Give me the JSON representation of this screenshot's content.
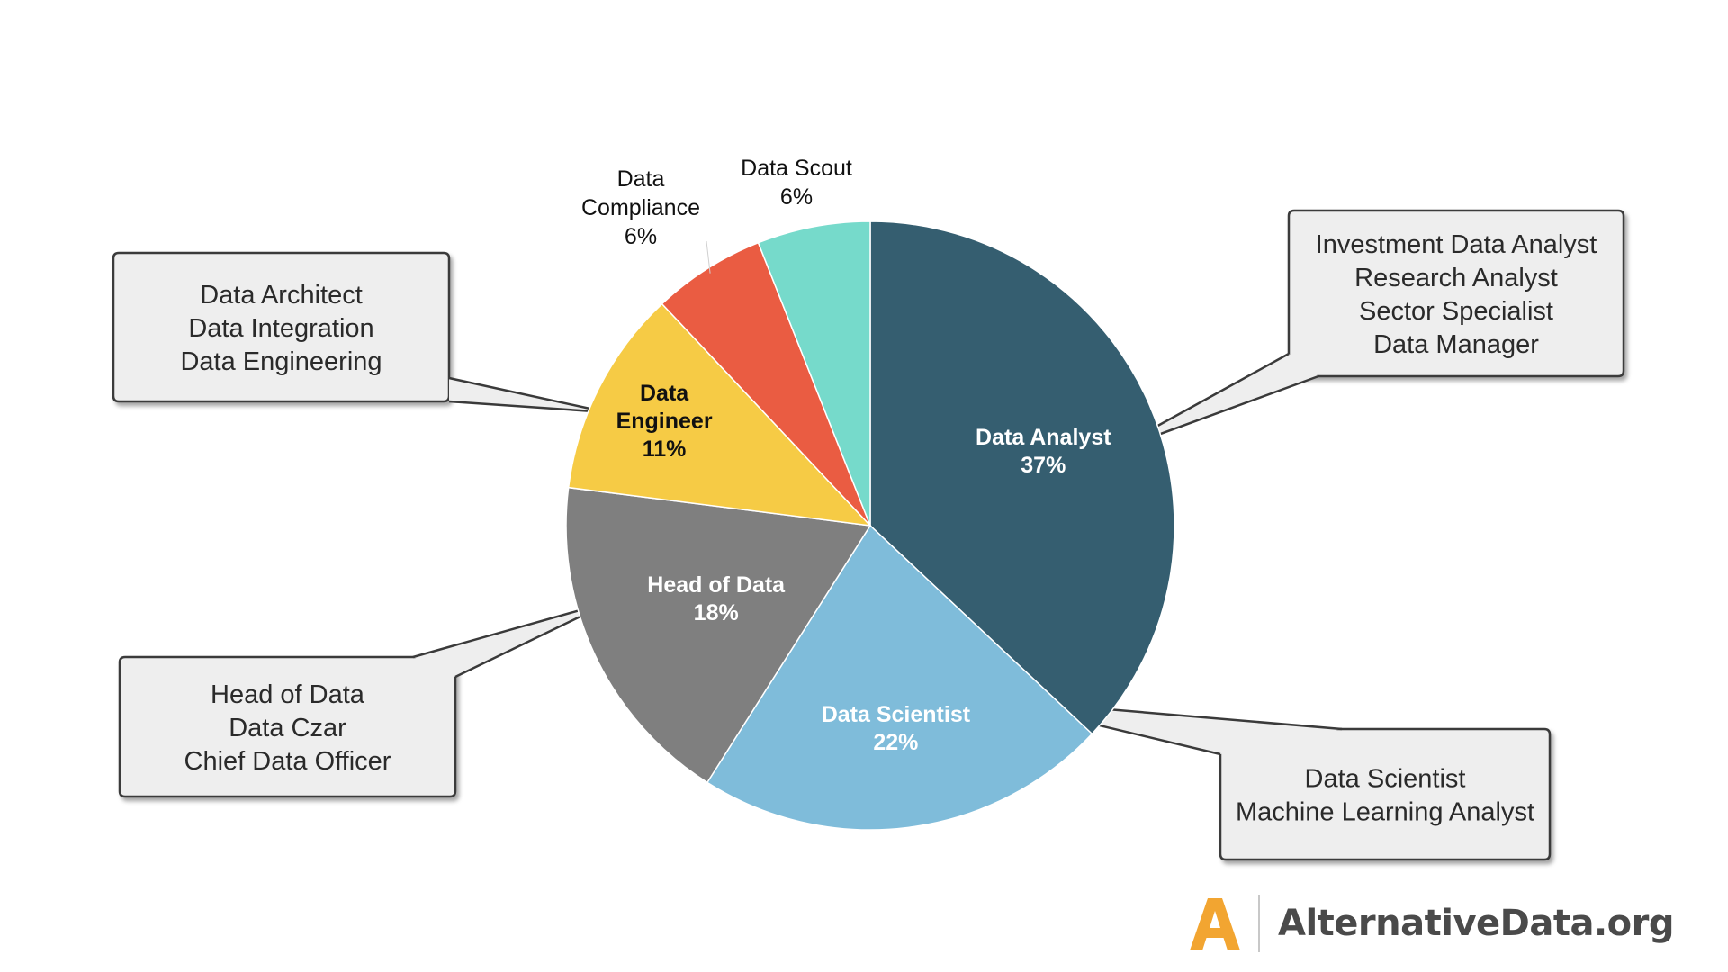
{
  "chart_data": {
    "type": "pie",
    "title": "",
    "slices": [
      {
        "label": "Data Analyst",
        "value": 37,
        "value_label": "37%",
        "color": "#355e70",
        "label_color": "#ffffff",
        "bold": true
      },
      {
        "label": "Data Scientist",
        "value": 22,
        "value_label": "22%",
        "color": "#7fbcda",
        "label_color": "#ffffff",
        "bold": true
      },
      {
        "label": "Head of Data",
        "value": 18,
        "value_label": "18%",
        "color": "#7f7f7f",
        "label_color": "#ffffff",
        "bold": true
      },
      {
        "label": "Data Engineer",
        "value": 11,
        "value_label": "11%",
        "color": "#f6cb45",
        "label_color": "#111111",
        "bold": true
      },
      {
        "label": "Data Compliance",
        "value": 6,
        "value_label": "6%",
        "color": "#ea5c42",
        "label_color": "#111111",
        "bold": false
      },
      {
        "label": "Data Scout",
        "value": 6,
        "value_label": "6%",
        "color": "#76dacb",
        "label_color": "#111111",
        "bold": false
      }
    ],
    "callouts": [
      {
        "slice": "Data Analyst",
        "lines": [
          "Investment Data Analyst",
          "Research Analyst",
          "Sector Specialist",
          "Data Manager"
        ]
      },
      {
        "slice": "Data Scientist",
        "lines": [
          "Data Scientist",
          "Machine Learning Analyst"
        ]
      },
      {
        "slice": "Head of Data",
        "lines": [
          "Head of Data",
          "Data Czar",
          "Chief Data Officer"
        ]
      },
      {
        "slice": "Data Engineer",
        "lines": [
          "Data Architect",
          "Data Integration",
          "Data Engineering"
        ]
      }
    ]
  },
  "brand": {
    "name": "AlternativeData.org",
    "mark_color": "#f2a531"
  }
}
